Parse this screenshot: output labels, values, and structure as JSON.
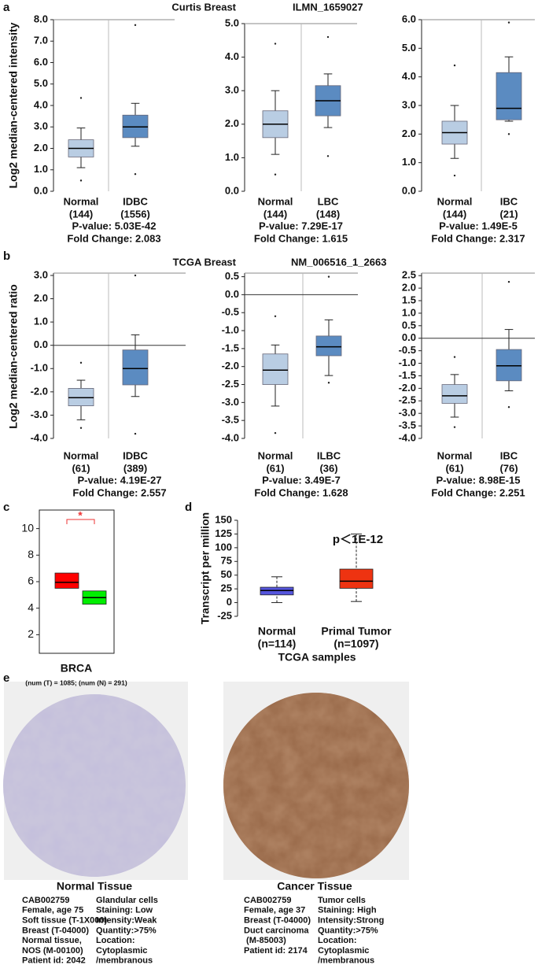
{
  "chart_data": [
    {
      "type": "box",
      "panel": "a",
      "title": "Curtis Breast",
      "reporter": "ILMN_1659027",
      "ylabel": "Log2 median-centered intensity",
      "ylim": [
        0,
        8
      ],
      "yticks": [
        {
          "value": 0,
          "label": "0.0"
        },
        {
          "value": 1,
          "label": "1.0"
        },
        {
          "value": 2,
          "label": "2.0"
        },
        {
          "value": 3,
          "label": "3.0"
        },
        {
          "value": 4,
          "label": "4.0"
        },
        {
          "value": 5,
          "label": "5.0"
        },
        {
          "value": 6,
          "label": "6.0"
        },
        {
          "value": 7,
          "label": "7.0"
        },
        {
          "value": 8,
          "label": "8.0"
        }
      ],
      "boxes": [
        {
          "label": "Normal",
          "n": "(144)",
          "low": 1.1,
          "q1": 1.6,
          "median": 2.0,
          "q3": 2.4,
          "high": 2.95,
          "outliers": [
            0.5,
            4.35
          ],
          "color": "#b9cde3"
        },
        {
          "label": "IDBC",
          "n": "(1556)",
          "low": 2.1,
          "q1": 2.5,
          "median": 3.0,
          "q3": 3.55,
          "high": 4.1,
          "outliers": [
            0.8,
            7.75
          ],
          "color": "#5b8bc1"
        }
      ],
      "p_value": "P-value: 5.03E-42",
      "fold_change": "Fold Change: 2.083"
    },
    {
      "type": "box",
      "ylim": [
        0,
        5
      ],
      "yticks": [
        {
          "value": 0,
          "label": "0.0"
        },
        {
          "value": 1,
          "label": "1.0"
        },
        {
          "value": 2,
          "label": "2.0"
        },
        {
          "value": 3,
          "label": "3.0"
        },
        {
          "value": 4,
          "label": "4.0"
        },
        {
          "value": 5,
          "label": "5.0"
        }
      ],
      "boxes": [
        {
          "label": "Normal",
          "n": "(144)",
          "low": 1.1,
          "q1": 1.6,
          "median": 2.0,
          "q3": 2.4,
          "high": 3.0,
          "outliers": [
            0.5,
            4.4
          ],
          "color": "#b9cde3"
        },
        {
          "label": "LBC",
          "n": "(148)",
          "low": 1.9,
          "q1": 2.25,
          "median": 2.7,
          "q3": 3.15,
          "high": 3.5,
          "outliers": [
            1.05,
            4.6
          ],
          "color": "#5b8bc1"
        }
      ],
      "p_value": "P-value: 7.29E-17",
      "fold_change": "Fold Change: 1.615"
    },
    {
      "type": "box",
      "ylim": [
        0,
        6
      ],
      "yticks": [
        {
          "value": 0,
          "label": "0.0"
        },
        {
          "value": 1,
          "label": "1.0"
        },
        {
          "value": 2,
          "label": "2.0"
        },
        {
          "value": 3,
          "label": "3.0"
        },
        {
          "value": 4,
          "label": "4.0"
        },
        {
          "value": 5,
          "label": "5.0"
        },
        {
          "value": 6,
          "label": "6.0"
        }
      ],
      "boxes": [
        {
          "label": "Normal",
          "n": "(144)",
          "low": 1.15,
          "q1": 1.65,
          "median": 2.05,
          "q3": 2.45,
          "high": 3.0,
          "outliers": [
            0.55,
            4.4
          ],
          "color": "#b9cde3"
        },
        {
          "label": "IBC",
          "n": "(21)",
          "low": 2.45,
          "q1": 2.5,
          "median": 2.9,
          "q3": 4.15,
          "high": 4.7,
          "outliers": [
            2.0,
            5.9
          ],
          "color": "#5b8bc1"
        }
      ],
      "p_value": "P-value: 1.49E-5",
      "fold_change": "Fold Change: 2.317"
    },
    {
      "type": "box",
      "panel": "b",
      "title": "TCGA Breast",
      "reporter": "NM_006516_1_2663",
      "ylabel": "Log2 median-centered ratio",
      "ylim": [
        -4,
        3.1
      ],
      "zero_line": true,
      "yticks": [
        {
          "value": -4,
          "label": "-4.0"
        },
        {
          "value": -3,
          "label": "-3.0"
        },
        {
          "value": -2,
          "label": "-2.0"
        },
        {
          "value": -1,
          "label": "-1.0"
        },
        {
          "value": 0,
          "label": "0.0"
        },
        {
          "value": 1,
          "label": "1.0"
        },
        {
          "value": 2,
          "label": "2.0"
        },
        {
          "value": 3,
          "label": "3.0"
        }
      ],
      "boxes": [
        {
          "label": "Normal",
          "n": "(61)",
          "low": -3.2,
          "q1": -2.6,
          "median": -2.25,
          "q3": -1.85,
          "high": -1.5,
          "outliers": [
            -3.55,
            -0.75
          ],
          "color": "#b9cde3"
        },
        {
          "label": "IDBC",
          "n": "(389)",
          "low": -2.2,
          "q1": -1.7,
          "median": -1.0,
          "q3": -0.2,
          "high": 0.45,
          "outliers": [
            -3.8,
            3.0
          ],
          "color": "#5b8bc1"
        }
      ],
      "p_value": "P-value: 4.19E-27",
      "fold_change": "Fold Change: 2.557"
    },
    {
      "type": "box",
      "ylim": [
        -4,
        0.6
      ],
      "zero_line": true,
      "yticks": [
        {
          "value": -4,
          "label": "-4.0"
        },
        {
          "value": -3.5,
          "label": "-3.5"
        },
        {
          "value": -3,
          "label": "-3.0"
        },
        {
          "value": -2.5,
          "label": "-2.5"
        },
        {
          "value": -2,
          "label": "-2.0"
        },
        {
          "value": -1.5,
          "label": "-1.5"
        },
        {
          "value": -1,
          "label": "-1.0"
        },
        {
          "value": -0.5,
          "label": "-0.5"
        },
        {
          "value": 0,
          "label": "0.0"
        },
        0.5
      ],
      "boxes": [
        {
          "label": "Normal",
          "n": "(61)",
          "low": -3.1,
          "q1": -2.5,
          "median": -2.1,
          "q3": -1.65,
          "high": -1.4,
          "outliers": [
            -3.85,
            -0.6
          ],
          "color": "#b9cde3"
        },
        {
          "label": "ILBC",
          "n": "(36)",
          "low": -2.25,
          "q1": -1.7,
          "median": -1.45,
          "q3": -1.15,
          "high": -0.7,
          "outliers": [
            -2.45,
            0.5
          ],
          "color": "#5b8bc1"
        }
      ],
      "p_value": "P-value: 3.49E-7",
      "fold_change": "Fold Change: 1.628"
    },
    {
      "type": "box",
      "ylim": [
        -4,
        2.6
      ],
      "zero_line": true,
      "yticks": [
        {
          "value": -4,
          "label": "-4.0"
        },
        {
          "value": -3.5,
          "label": "-3.5"
        },
        {
          "value": -3,
          "label": "-3.0"
        },
        {
          "value": -2.5,
          "label": "-2.5"
        },
        {
          "value": -2,
          "label": "-2.0"
        },
        {
          "value": -1.5,
          "label": "-1.5"
        },
        {
          "value": -1,
          "label": "-1.0"
        },
        {
          "value": -0.5,
          "label": "-0.5"
        },
        {
          "value": 0,
          "label": "0.0"
        },
        0.5,
        {
          "value": 1,
          "label": "1.0"
        },
        1.5,
        {
          "value": 2,
          "label": "2.0"
        },
        2.5
      ],
      "boxes": [
        {
          "label": "Normal",
          "n": "(61)",
          "low": -3.15,
          "q1": -2.6,
          "median": -2.3,
          "q3": -1.85,
          "high": -1.45,
          "outliers": [
            -3.55,
            -0.75
          ],
          "color": "#b9cde3"
        },
        {
          "label": "IBC",
          "n": "(76)",
          "low": -2.1,
          "q1": -1.7,
          "median": -1.1,
          "q3": -0.45,
          "high": 0.35,
          "outliers": [
            -2.75,
            2.25
          ],
          "color": "#5b8bc1"
        }
      ],
      "p_value": "P-value: 8.98E-15",
      "fold_change": "Fold Change: 2.251"
    },
    {
      "type": "box",
      "panel": "c",
      "ylim": [
        0.6,
        11.4
      ],
      "yticks": [
        2,
        4,
        6,
        8,
        10
      ],
      "xlabel": "BRCA",
      "note": "(num (T) = 1085; (num (N) = 291)",
      "significance": "*",
      "boxes": [
        {
          "q1": 5.5,
          "median": 5.95,
          "q3": 6.65,
          "color": "#ff0000"
        },
        {
          "q1": 4.3,
          "median": 4.8,
          "q3": 5.3,
          "color": "#00ee00"
        }
      ]
    },
    {
      "type": "box",
      "panel": "d",
      "ylim": [
        -25,
        150
      ],
      "yticks": [
        -25,
        0,
        25,
        50,
        75,
        100,
        125,
        150
      ],
      "ylabel": "Transcript per million",
      "xlabel": "TCGA samples",
      "annotation": "p＜1E-12",
      "boxes": [
        {
          "label": "Normal",
          "n": "(n=114)",
          "low": 0,
          "q1": 14,
          "median": 22,
          "q3": 28,
          "high": 47,
          "color": "#5555dd"
        },
        {
          "label": "Primal Tumor",
          "n": "(n=1097)",
          "low": 2,
          "q1": 26,
          "median": 39,
          "q3": 61,
          "high": 125,
          "color": "#ee3311"
        }
      ]
    }
  ],
  "panel_e": "e",
  "tissue": [
    {
      "title": "Normal Tissue",
      "col1": [
        "CAB002759",
        "Female, age 75",
        "Soft tissue (T-1X000)",
        "Breast (T-04000)",
        "Normal tissue,",
        "NOS (M-00100)",
        "Patient id: 2042"
      ],
      "col2": [
        "Glandular cells",
        "Staining: Low",
        "Intensity:Weak",
        "Quantity:>75%",
        "Location:",
        "Cytoplasmic",
        "/membranous"
      ]
    },
    {
      "title": "Cancer Tissue",
      "col1": [
        "CAB002759",
        "Female, age 37",
        "Breast (T-04000)",
        "Duct carcinoma",
        " (M-85003)",
        "Patient id: 2174"
      ],
      "col2": [
        "Tumor cells",
        "Staining: High",
        "Intensity:Strong",
        "Quantity:>75%",
        "Location:",
        "Cytoplasmic",
        "/membranous"
      ]
    }
  ]
}
